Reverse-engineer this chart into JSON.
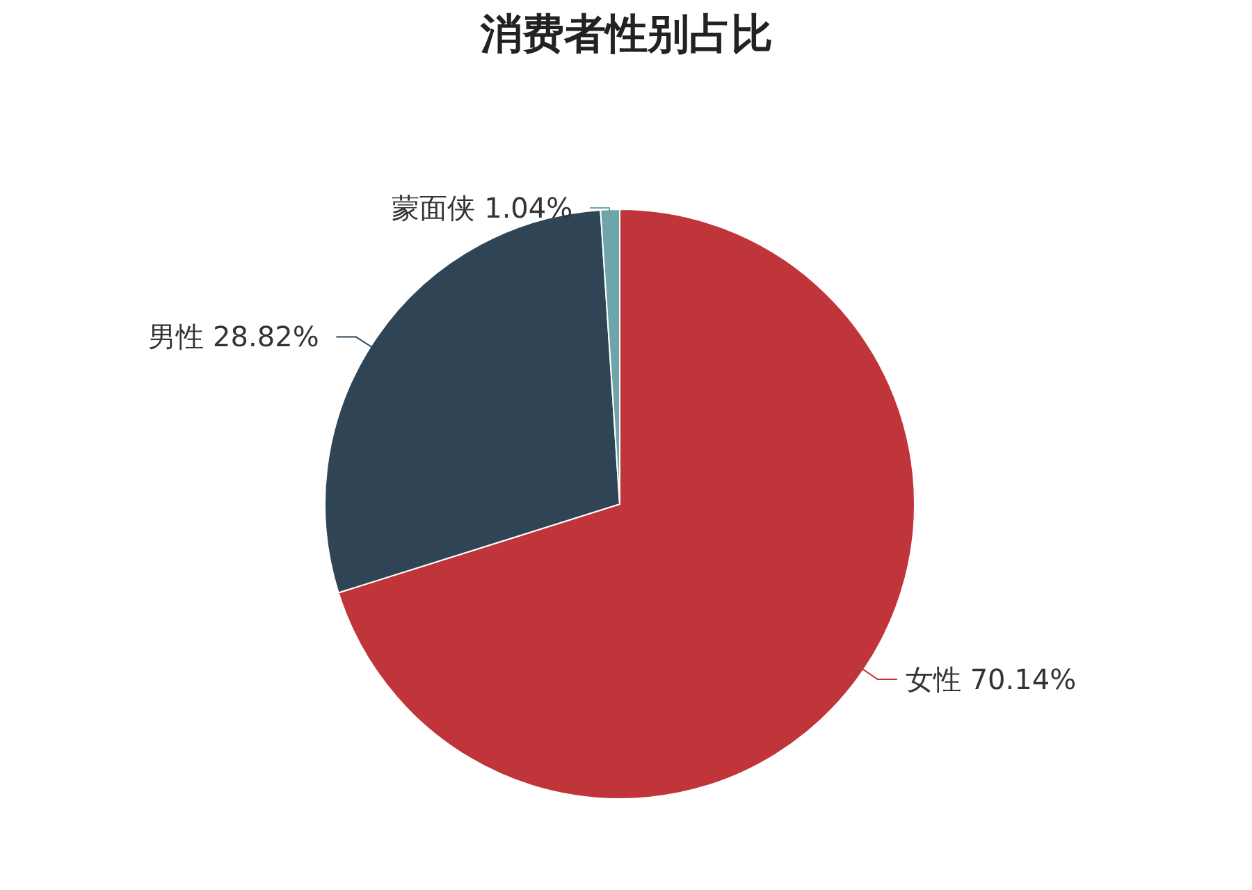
{
  "chart_data": {
    "type": "pie",
    "title": "消费者性别占比",
    "categories": [
      "女性",
      "男性",
      "蒙面侠"
    ],
    "values": [
      70.14,
      28.82,
      1.04
    ],
    "colors": [
      "#c0353a",
      "#2f4455",
      "#6ea5ab"
    ],
    "value_labels": [
      "70.14%",
      "28.82%",
      "1.04%"
    ]
  }
}
